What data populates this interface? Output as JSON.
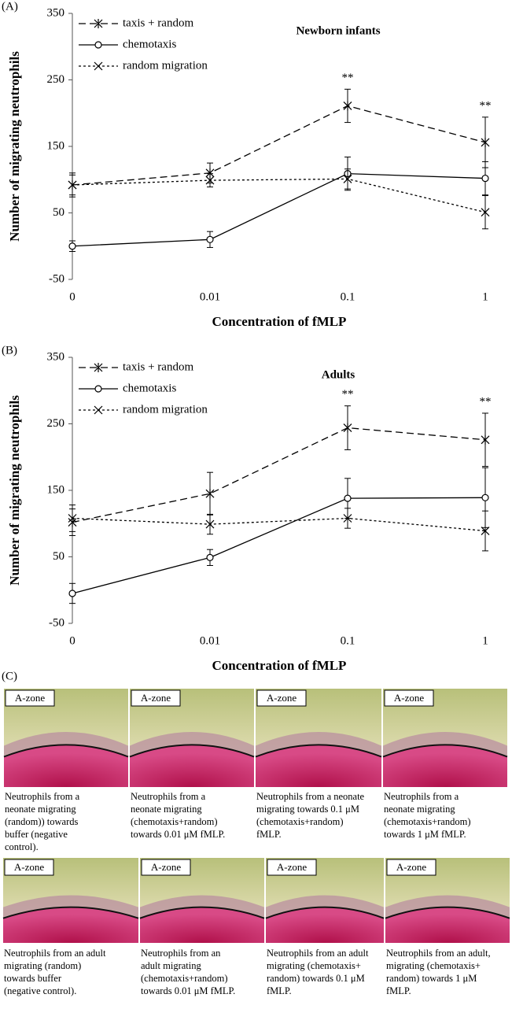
{
  "chart_data": [
    {
      "type": "line",
      "panel_label": "(A)",
      "title": "Newborn infants",
      "xlabel": "Concentration of fMLP",
      "ylabel": "Number of migrating neutrophils",
      "categories": [
        "0",
        "0.01",
        "0.1",
        "1"
      ],
      "ylim": [
        -50,
        350
      ],
      "yticks": [
        -50,
        50,
        150,
        250,
        350
      ],
      "significance": [
        null,
        null,
        "**",
        "**"
      ],
      "series": [
        {
          "name": "taxis + random",
          "color": "#000000",
          "line_style": "dashed",
          "marker": "asterisk",
          "values": [
            92,
            110,
            211,
            156
          ],
          "errors": [
            18,
            15,
            25,
            38
          ]
        },
        {
          "name": "chemotaxis",
          "color": "#000000",
          "line_style": "solid",
          "marker": "circle",
          "values": [
            0,
            10,
            109,
            102
          ],
          "errors": [
            8,
            12,
            25,
            25
          ]
        },
        {
          "name": "random migration",
          "color": "#000000",
          "line_style": "dotted",
          "marker": "x",
          "values": [
            92,
            99,
            101,
            51
          ],
          "errors": [
            15,
            10,
            15,
            25
          ]
        }
      ]
    },
    {
      "type": "line",
      "panel_label": "(B)",
      "title": "Adults",
      "xlabel": "Concentration of fMLP",
      "ylabel": "Number of migrating neutrophils",
      "categories": [
        "0",
        "0.01",
        "0.1",
        "1"
      ],
      "ylim": [
        -50,
        350
      ],
      "yticks": [
        -50,
        50,
        150,
        250,
        350
      ],
      "significance": [
        null,
        null,
        "**",
        "**"
      ],
      "series": [
        {
          "name": "taxis + random",
          "color": "#000000",
          "line_style": "dashed",
          "marker": "asterisk",
          "values": [
            102,
            145,
            244,
            226
          ],
          "errors": [
            20,
            32,
            33,
            40
          ]
        },
        {
          "name": "chemotaxis",
          "color": "#000000",
          "line_style": "solid",
          "marker": "circle",
          "values": [
            -5,
            49,
            138,
            139
          ],
          "errors": [
            15,
            12,
            30,
            45
          ]
        },
        {
          "name": "random migration",
          "color": "#000000",
          "line_style": "dotted",
          "marker": "x",
          "values": [
            108,
            99,
            108,
            89
          ],
          "errors": [
            20,
            15,
            15,
            30
          ]
        }
      ]
    }
  ],
  "panel_c": {
    "panel_label": "(C)",
    "rows": [
      [
        {
          "zone_label": "A-zone",
          "caption": [
            "Neutrophils from a",
            "neonate migrating",
            "(random)) towards",
            "buffer (negative",
            "control)."
          ]
        },
        {
          "zone_label": "A-zone",
          "caption": [
            "Neutrophils from a",
            "neonate migrating",
            "(chemotaxis+random)",
            "towards 0.01 μM fMLP."
          ]
        },
        {
          "zone_label": "A-zone",
          "caption": [
            "Neutrophils from a neonate",
            "migrating towards 0.1 μM",
            "(chemotaxis+random)",
            "fMLP."
          ]
        },
        {
          "zone_label": "A-zone",
          "caption": [
            "Neutrophils from a",
            "neonate migrating",
            "(chemotaxis+random)",
            "towards 1 μM fMLP."
          ]
        }
      ],
      [
        {
          "zone_label": "A-zone",
          "caption": [
            "Neutrophils from an adult",
            "migrating (random)",
            "towards buffer",
            "(negative control)."
          ]
        },
        {
          "zone_label": "A-zone",
          "caption": [
            "Neutrophils from an",
            "adult migrating",
            "(chemotaxis+random)",
            "towards 0.01 μM fMLP."
          ]
        },
        {
          "zone_label": "A-zone",
          "caption": [
            "Neutrophils from an adult",
            "migrating (chemotaxis+",
            "random) towards 0.1 μM",
            "fMLP."
          ]
        },
        {
          "zone_label": "A-zone",
          "caption": [
            "Neutrophils from an adult,",
            "migrating (chemotaxis+",
            "random) towards 1 μM",
            "fMLP."
          ]
        }
      ]
    ]
  }
}
